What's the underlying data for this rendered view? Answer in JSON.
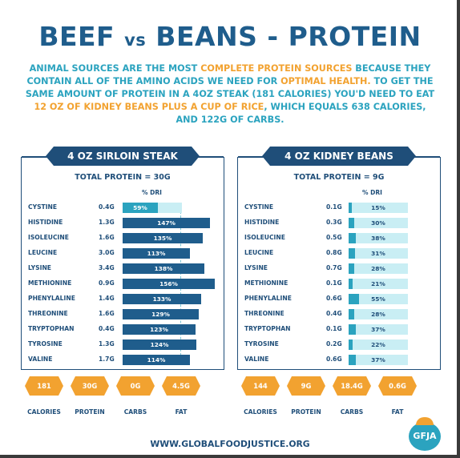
{
  "title": {
    "part1": "BEEF ",
    "vs": "vs",
    "part2": " BEANS - PROTEIN"
  },
  "intro": {
    "t1": "ANIMAL SOURCES ARE THE MOST ",
    "h1": "COMPLETE PROTEIN SOURCES",
    "t2": " BECAUSE THEY CONTAIN ALL OF THE AMINO ACIDS WE NEED FOR ",
    "h2": "OPTIMAL HEALTH.",
    "t3": " TO GET THE SAME AMOUNT OF PROTEIN IN A 4OZ STEAK (181 CALORIES) YOU'D NEED TO EAT ",
    "h3": "12 OZ OF KIDNEY BEANS PLUS A CUP OF RICE",
    "t4": ", WHICH EQUALS 638 CALORIES, AND 122G OF CARBS."
  },
  "beef": {
    "header": "4 OZ SIRLOIN STEAK",
    "total": "TOTAL PROTEIN = 30G",
    "dri_label": "% DRI",
    "rows": [
      {
        "name": "CYSTINE",
        "amount": "0.4G",
        "pct_label": "59%",
        "pct": 59
      },
      {
        "name": "HISTIDINE",
        "amount": "1.3G",
        "pct_label": "147%",
        "pct": 147
      },
      {
        "name": "ISOLEUCINE",
        "amount": "1.6G",
        "pct_label": "135%",
        "pct": 135
      },
      {
        "name": "LEUCINE",
        "amount": "3.0G",
        "pct_label": "113%",
        "pct": 113
      },
      {
        "name": "LYSINE",
        "amount": "3.4G",
        "pct_label": "138%",
        "pct": 138
      },
      {
        "name": "METHIONINE",
        "amount": "0.9G",
        "pct_label": "156%",
        "pct": 156
      },
      {
        "name": "PHENYLALINE",
        "amount": "1.4G",
        "pct_label": "133%",
        "pct": 133
      },
      {
        "name": "THREONINE",
        "amount": "1.6G",
        "pct_label": "129%",
        "pct": 129
      },
      {
        "name": "TRYPTOPHAN",
        "amount": "0.4G",
        "pct_label": "123%",
        "pct": 123
      },
      {
        "name": "TYROSINE",
        "amount": "1.3G",
        "pct_label": "124%",
        "pct": 124
      },
      {
        "name": "VALINE",
        "amount": "1.7G",
        "pct_label": "114%",
        "pct": 114
      }
    ],
    "stats": [
      {
        "value": "181",
        "label": "CALORIES"
      },
      {
        "value": "30G",
        "label": "PROTEIN"
      },
      {
        "value": "0G",
        "label": "CARBS"
      },
      {
        "value": "4.5G",
        "label": "FAT"
      }
    ]
  },
  "beans": {
    "header": "4 OZ KIDNEY BEANS",
    "total": "TOTAL PROTEIN = 9G",
    "dri_label": "% DRI",
    "rows": [
      {
        "name": "CYSTINE",
        "amount": "0.1G",
        "pct_label": "15%",
        "pct": 15
      },
      {
        "name": "HISTIDINE",
        "amount": "0.3G",
        "pct_label": "30%",
        "pct": 30
      },
      {
        "name": "ISOLEUCINE",
        "amount": "0.5G",
        "pct_label": "38%",
        "pct": 38
      },
      {
        "name": "LEUCINE",
        "amount": "0.8G",
        "pct_label": "31%",
        "pct": 31
      },
      {
        "name": "LYSINE",
        "amount": "0.7G",
        "pct_label": "28%",
        "pct": 28
      },
      {
        "name": "METHIONINE",
        "amount": "0.1G",
        "pct_label": "21%",
        "pct": 21
      },
      {
        "name": "PHENYLALINE",
        "amount": "0.6G",
        "pct_label": "55%",
        "pct": 55
      },
      {
        "name": "THREONINE",
        "amount": "0.4G",
        "pct_label": "28%",
        "pct": 28
      },
      {
        "name": "TRYPTOPHAN",
        "amount": "0.1G",
        "pct_label": "37%",
        "pct": 37
      },
      {
        "name": "TYROSINE",
        "amount": "0.2G",
        "pct_label": "22%",
        "pct": 22
      },
      {
        "name": "VALINE",
        "amount": "0.6G",
        "pct_label": "37%",
        "pct": 37
      }
    ],
    "stats": [
      {
        "value": "144",
        "label": "CALORIES"
      },
      {
        "value": "9G",
        "label": "PROTEIN"
      },
      {
        "value": "18.4G",
        "label": "CARBS"
      },
      {
        "value": "0.6G",
        "label": "FAT"
      }
    ]
  },
  "footer": {
    "url": "WWW.GLOBALFOODJUSTICE.ORG",
    "logo": "GFJA"
  },
  "colors": {
    "navy": "#1f4e79",
    "teal": "#2ba3bf",
    "orange": "#f2a230",
    "light_teal": "#c9eef4"
  }
}
